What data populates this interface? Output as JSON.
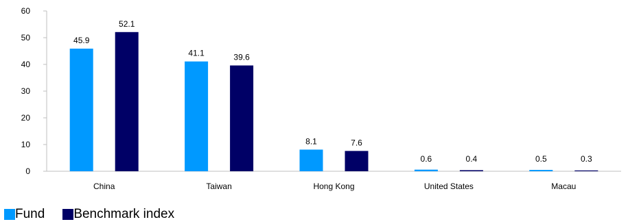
{
  "chart_data": {
    "type": "bar",
    "categories": [
      "China",
      "Taiwan",
      "Hong Kong",
      "United States",
      "Macau"
    ],
    "series": [
      {
        "name": "Fund",
        "color": "#0099ff",
        "values": [
          45.9,
          41.1,
          8.1,
          0.6,
          0.5
        ],
        "labels": [
          "45.9",
          "41.1",
          "8.1",
          "0.6",
          "0.5"
        ]
      },
      {
        "name": "Benchmark index",
        "color": "#000066",
        "values": [
          52.1,
          39.6,
          7.6,
          0.4,
          0.3
        ],
        "labels": [
          "52.1",
          "39.6",
          "7.6",
          "0.4",
          "0.3"
        ]
      }
    ],
    "ylim": [
      0,
      60
    ],
    "yticks": [
      0,
      10,
      20,
      30,
      40,
      50,
      60
    ],
    "ytick_labels": [
      "0",
      "10",
      "20",
      "30",
      "40",
      "50",
      "60"
    ],
    "title": "",
    "xlabel": "",
    "ylabel": "",
    "grid": false,
    "legend_position": "bottom-left"
  }
}
